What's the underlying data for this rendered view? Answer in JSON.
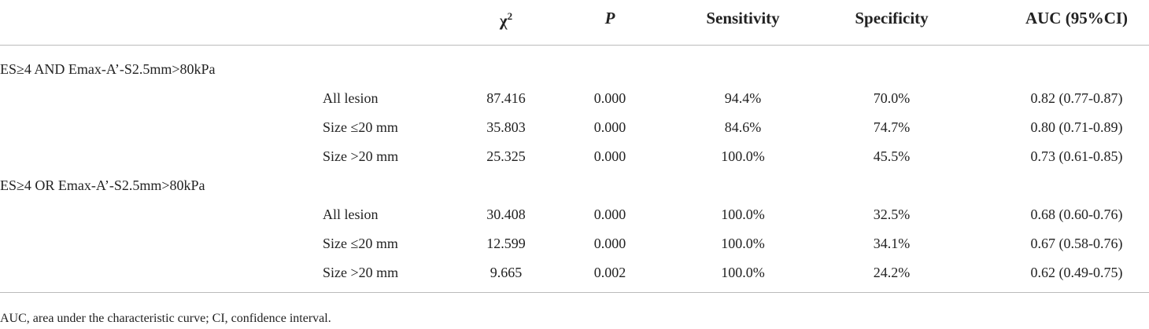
{
  "table": {
    "columns": [
      {
        "base": "χ",
        "sup": "2"
      },
      "P",
      "Sensitivity",
      "Specificity",
      "AUC (95%CI)"
    ],
    "groups": [
      {
        "label": "ES≥4 AND Emax-A’-S2.5mm>80kPa",
        "rows": [
          [
            "All lesion",
            "87.416",
            "0.000",
            "94.4%",
            "70.0%",
            "0.82 (0.77-0.87)"
          ],
          [
            "Size ≤20 mm",
            "35.803",
            "0.000",
            "84.6%",
            "74.7%",
            "0.80 (0.71-0.89)"
          ],
          [
            "Size >20 mm",
            "25.325",
            "0.000",
            "100.0%",
            "45.5%",
            "0.73 (0.61-0.85)"
          ]
        ]
      },
      {
        "label": "ES≥4 OR Emax-A’-S2.5mm>80kPa",
        "rows": [
          [
            "All lesion",
            "30.408",
            "0.000",
            "100.0%",
            "32.5%",
            "0.68 (0.60-0.76)"
          ],
          [
            "Size ≤20 mm",
            "12.599",
            "0.000",
            "100.0%",
            "34.1%",
            "0.67 (0.58-0.76)"
          ],
          [
            "Size >20 mm",
            "9.665",
            "0.002",
            "100.0%",
            "24.2%",
            "0.62 (0.49-0.75)"
          ]
        ]
      }
    ]
  },
  "footnote": "AUC, area under the characteristic curve; CI, confidence interval."
}
